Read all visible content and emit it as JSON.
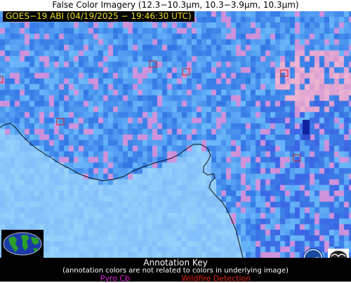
{
  "header": {
    "title": "False Color Imagery (12.3−10.3μm, 10.3−3.9μm, 10.3μm)"
  },
  "image": {
    "timestamp": "GOES−19 ABI (04/19/2025 − 19:46:30 UTC)",
    "timestamp_color": "#f0e020",
    "detection_marker_color": "#d02020",
    "detections_shown": 6
  },
  "logos": {
    "globe": "earth-globe-icon",
    "noaa": "noaa-logo-icon",
    "cimss": "cimss-logo-icon"
  },
  "annotation_key": {
    "title": "Annotation Key",
    "subtitle": "(annotation colors are not related to colors in underlying image)",
    "pyro_cb_label": "Pyro Cb",
    "pyro_cb_color": "#e020e0",
    "wildfire_label": "Wildfire Detection",
    "wildfire_color": "#e02010"
  }
}
